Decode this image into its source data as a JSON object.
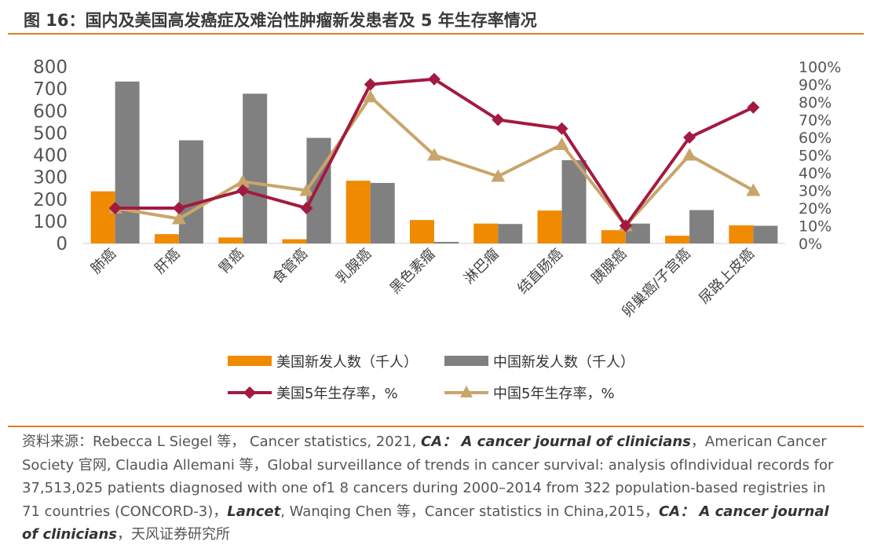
{
  "title": "图 16：国内及美国高发癌症及难治性肿瘤新发患者及 5 年生存率情况",
  "chart_data": {
    "type": "bar+line",
    "categories": [
      "肺癌",
      "肝癌",
      "胃癌",
      "食管癌",
      "乳腺癌",
      "黑色素瘤",
      "淋巴瘤",
      "结直肠癌",
      "胰腺癌",
      "卵巢癌/子宫癌",
      "尿路上皮癌"
    ],
    "left_axis": {
      "ylim": [
        0,
        800
      ],
      "ticks": [
        "0",
        "100",
        "200",
        "300",
        "400",
        "500",
        "600",
        "700",
        "800"
      ]
    },
    "right_axis": {
      "ylim": [
        0,
        100
      ],
      "ticks": [
        "0%",
        "10%",
        "20%",
        "30%",
        "40%",
        "50%",
        "60%",
        "70%",
        "80%",
        "90%",
        "100%"
      ]
    },
    "bar_series": [
      {
        "name": "美国新发人数（千人）",
        "color": "#f08a00",
        "values": [
          236,
          42,
          27,
          19,
          284,
          106,
          90,
          149,
          60,
          35,
          82
        ]
      },
      {
        "name": "中国新发人数（千人）",
        "color": "#808080",
        "values": [
          733,
          467,
          678,
          478,
          274,
          7,
          88,
          377,
          90,
          151,
          80
        ]
      }
    ],
    "line_series": [
      {
        "name": "美国5年生存率，%",
        "color": "#a31a40",
        "marker": "diamond",
        "values": [
          20,
          20,
          30,
          20,
          90,
          93,
          70,
          65,
          10,
          60,
          77
        ]
      },
      {
        "name": "中国5年生存率，%",
        "color": "#c9a56b",
        "marker": "triangle",
        "values": [
          20,
          14,
          35,
          30,
          83,
          50,
          38,
          56,
          10,
          50,
          30
        ]
      }
    ],
    "legend": {
      "bar_us": "美国新发人数（千人）",
      "bar_cn": "中国新发人数（千人）",
      "line_us": "美国5年生存率，%",
      "line_cn": "中国5年生存率，%"
    }
  },
  "source": {
    "prefix": "资料来源：Rebecca L Siegel 等， Cancer statistics, 2021, ",
    "journal1": "CA： A cancer journal of clinicians",
    "part2": "，American Cancer Society 官网, Claudia Allemani 等，Global surveillance of trends in cancer survival: analysis ofIndividual records for 37,513,025 patients diagnosed with one of1 8 cancers during 2000–2014 from 322 population-based registries in 71 countries (CONCORD-3)，",
    "journal2": "Lancet",
    "part3": ", Wanqing Chen 等，Cancer statistics in China,2015，",
    "journal3": "CA： A cancer journal of clinicians",
    "suffix": "，天风证券研究所"
  }
}
